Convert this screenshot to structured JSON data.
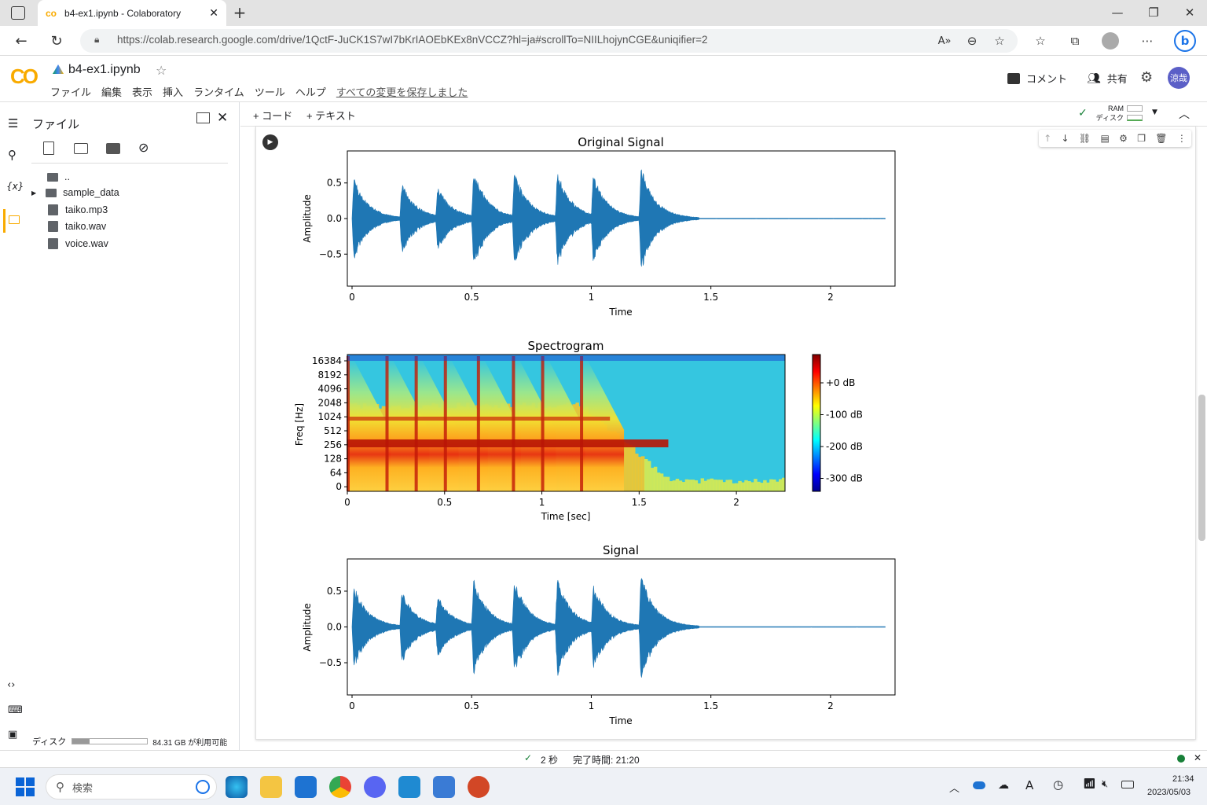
{
  "browser": {
    "tab_title": "b4-ex1.ipynb - Colaboratory",
    "new_tab": "+",
    "url": "https://colab.research.google.com/drive/1QctF-JuCK1S7wI7bKrIAOEbKEx8nVCCZ?hl=ja#scrollTo=NIILhojynCGE&uniqifier=2"
  },
  "colab": {
    "logo": "CO",
    "notebook_name": "b4-ex1.ipynb",
    "menu": [
      "ファイル",
      "編集",
      "表示",
      "挿入",
      "ランタイム",
      "ツール",
      "ヘルプ"
    ],
    "save_status": "すべての変更を保存しました",
    "comment": "コメント",
    "share": "共有",
    "avatar": "涼哉"
  },
  "sidebar": {
    "title": "ファイル",
    "files": [
      {
        "name": "..",
        "type": "folder-up"
      },
      {
        "name": "sample_data",
        "type": "folder"
      },
      {
        "name": "taiko.mp3",
        "type": "file"
      },
      {
        "name": "taiko.wav",
        "type": "file"
      },
      {
        "name": "voice.wav",
        "type": "file"
      }
    ],
    "disk_label": "ディスク",
    "disk_free": "84.31 GB が利用可能",
    "disk_used_fraction": 0.23
  },
  "toolbar": {
    "add_code": "+ コード",
    "add_text": "+ テキスト",
    "ram": "RAM",
    "disk": "ディスク"
  },
  "status": {
    "duration": "2 秒",
    "completed": "完了時間: 21:20"
  },
  "taskbar": {
    "search": "検索",
    "time": "21:34",
    "date": "2023/05/03"
  },
  "chart_data": [
    {
      "type": "line",
      "title": "Original Signal",
      "xlabel": "Time",
      "ylabel": "Amplitude",
      "xlim": [
        0,
        2.25
      ],
      "ylim": [
        -0.95,
        0.95
      ],
      "xticks": [
        "0",
        "0.5",
        "1",
        "1.5",
        "2"
      ],
      "yticks": [
        "0.5",
        "0.0",
        "−0.5"
      ],
      "series": [
        {
          "color": "#1f77b4",
          "onsets": [
            0.0,
            0.2,
            0.35,
            0.5,
            0.67,
            0.85,
            1.0,
            1.2
          ],
          "peaks": [
            0.65,
            0.58,
            0.53,
            0.8,
            0.78,
            0.78,
            0.72,
            0.84
          ]
        }
      ],
      "signal_end": 1.45
    },
    {
      "type": "heatmap",
      "title": "Spectrogram",
      "xlabel": "Time [sec]",
      "ylabel": "Freq [Hz]",
      "xlim": [
        0,
        2.25
      ],
      "xticks": [
        "0",
        "0.5",
        "1",
        "1.5",
        "2"
      ],
      "yticks": [
        "16384",
        "8192",
        "4096",
        "2048",
        "1024",
        "512",
        "256",
        "128",
        "64",
        "0"
      ],
      "colormap": "jet",
      "colorbar_ticks": [
        "+0 dB",
        "-100 dB",
        "-200 dB",
        "-300 dB"
      ],
      "onsets": [
        0.0,
        0.2,
        0.35,
        0.5,
        0.67,
        0.85,
        1.0,
        1.2
      ]
    },
    {
      "type": "line",
      "title": "Signal",
      "xlabel": "Time",
      "ylabel": "Amplitude",
      "xlim": [
        0,
        2.25
      ],
      "ylim": [
        -0.95,
        0.95
      ],
      "xticks": [
        "0",
        "0.5",
        "1",
        "1.5",
        "2"
      ],
      "yticks": [
        "0.5",
        "0.0",
        "−0.5"
      ],
      "series": [
        {
          "color": "#1f77b4",
          "onsets": [
            0.0,
            0.2,
            0.35,
            0.5,
            0.67,
            0.85,
            1.0,
            1.2
          ],
          "peaks": [
            0.68,
            0.58,
            0.53,
            0.8,
            0.78,
            0.78,
            0.72,
            0.86
          ]
        }
      ],
      "signal_end": 1.45
    }
  ]
}
